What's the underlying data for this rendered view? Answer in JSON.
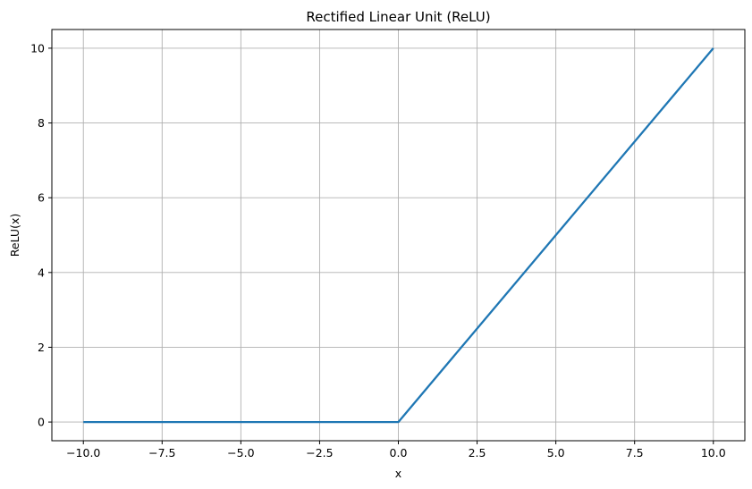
{
  "chart_data": {
    "type": "line",
    "title": "Rectified Linear Unit (ReLU)",
    "xlabel": "x",
    "ylabel": "ReLU(x)",
    "xlim": [
      -11.0,
      11.0
    ],
    "ylim": [
      -0.5,
      10.5
    ],
    "xticks": [
      -10.0,
      -7.5,
      -5.0,
      -2.5,
      0.0,
      2.5,
      5.0,
      7.5,
      10.0
    ],
    "xtick_labels": [
      "−10.0",
      "−7.5",
      "−5.0",
      "−2.5",
      "0.0",
      "2.5",
      "5.0",
      "7.5",
      "10.0"
    ],
    "yticks": [
      0,
      2,
      4,
      6,
      8,
      10
    ],
    "ytick_labels": [
      "0",
      "2",
      "4",
      "6",
      "8",
      "10"
    ],
    "grid": true,
    "series": [
      {
        "color": "#1f77b4",
        "x": [
          -10.0,
          0.0,
          10.0
        ],
        "y": [
          0.0,
          0.0,
          10.0
        ]
      }
    ]
  }
}
